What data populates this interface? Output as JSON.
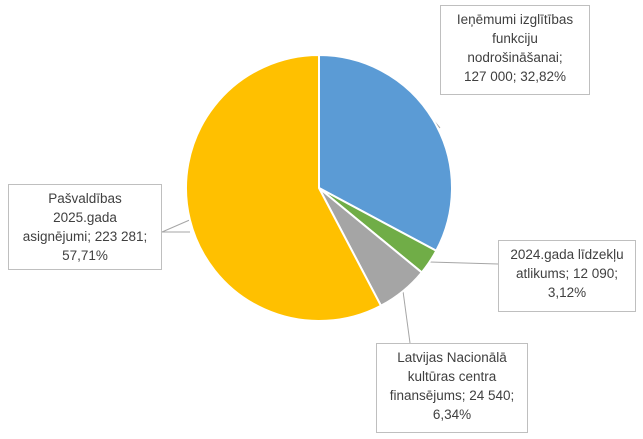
{
  "chart_data": {
    "type": "pie",
    "title": "",
    "slices": [
      {
        "label_lines": [
          "Ieņēmumi izglītības",
          "funkciju",
          "nodrošināšanai;",
          "127 000; 32,82%"
        ],
        "value": 127000,
        "percent": 32.82,
        "color": "#5B9BD5"
      },
      {
        "label_lines": [
          "2024.gada līdzekļu",
          "atlikums; 12 090;",
          "3,12%"
        ],
        "value": 12090,
        "percent": 3.12,
        "color": "#70AD47"
      },
      {
        "label_lines": [
          "Latvijas Nacionālā",
          "kultūras centra",
          "finansējums; 24 540;",
          "6,34%"
        ],
        "value": 24540,
        "percent": 6.34,
        "color": "#A5A5A5"
      },
      {
        "label_lines": [
          "Pašvaldības",
          "2025.gada",
          "asignējumi; 223 281;",
          "57,71%"
        ],
        "value": 223281,
        "percent": 57.71,
        "color": "#FFC000"
      }
    ]
  }
}
